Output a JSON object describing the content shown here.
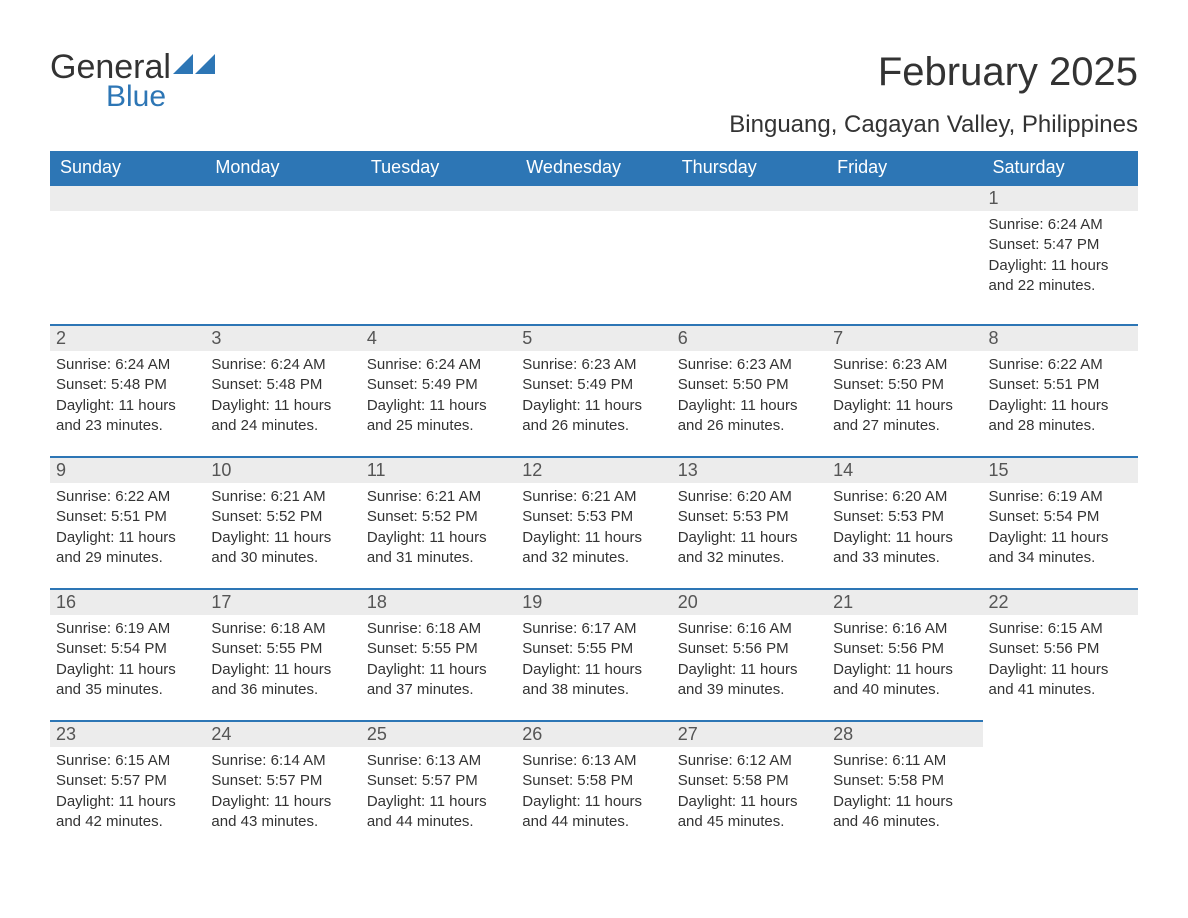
{
  "logo": {
    "word1": "General",
    "word2": "Blue",
    "color_text": "#333333",
    "color_blue": "#2d76b5"
  },
  "title": "February 2025",
  "location": "Binguang, Cagayan Valley, Philippines",
  "colors": {
    "header_bg": "#2d76b5",
    "header_text": "#ffffff",
    "daybar_bg": "#ececec",
    "daybar_border": "#2d76b5",
    "body_text": "#333333",
    "background": "#ffffff"
  },
  "font": {
    "family": "Arial",
    "title_size": 40,
    "location_size": 24,
    "dayhead_size": 18,
    "daynum_size": 18,
    "body_size": 15
  },
  "weekday_headers": [
    "Sunday",
    "Monday",
    "Tuesday",
    "Wednesday",
    "Thursday",
    "Friday",
    "Saturday"
  ],
  "weeks": [
    [
      null,
      null,
      null,
      null,
      null,
      null,
      {
        "n": "1",
        "sunrise": "Sunrise: 6:24 AM",
        "sunset": "Sunset: 5:47 PM",
        "daylight": "Daylight: 11 hours and 22 minutes."
      }
    ],
    [
      {
        "n": "2",
        "sunrise": "Sunrise: 6:24 AM",
        "sunset": "Sunset: 5:48 PM",
        "daylight": "Daylight: 11 hours and 23 minutes."
      },
      {
        "n": "3",
        "sunrise": "Sunrise: 6:24 AM",
        "sunset": "Sunset: 5:48 PM",
        "daylight": "Daylight: 11 hours and 24 minutes."
      },
      {
        "n": "4",
        "sunrise": "Sunrise: 6:24 AM",
        "sunset": "Sunset: 5:49 PM",
        "daylight": "Daylight: 11 hours and 25 minutes."
      },
      {
        "n": "5",
        "sunrise": "Sunrise: 6:23 AM",
        "sunset": "Sunset: 5:49 PM",
        "daylight": "Daylight: 11 hours and 26 minutes."
      },
      {
        "n": "6",
        "sunrise": "Sunrise: 6:23 AM",
        "sunset": "Sunset: 5:50 PM",
        "daylight": "Daylight: 11 hours and 26 minutes."
      },
      {
        "n": "7",
        "sunrise": "Sunrise: 6:23 AM",
        "sunset": "Sunset: 5:50 PM",
        "daylight": "Daylight: 11 hours and 27 minutes."
      },
      {
        "n": "8",
        "sunrise": "Sunrise: 6:22 AM",
        "sunset": "Sunset: 5:51 PM",
        "daylight": "Daylight: 11 hours and 28 minutes."
      }
    ],
    [
      {
        "n": "9",
        "sunrise": "Sunrise: 6:22 AM",
        "sunset": "Sunset: 5:51 PM",
        "daylight": "Daylight: 11 hours and 29 minutes."
      },
      {
        "n": "10",
        "sunrise": "Sunrise: 6:21 AM",
        "sunset": "Sunset: 5:52 PM",
        "daylight": "Daylight: 11 hours and 30 minutes."
      },
      {
        "n": "11",
        "sunrise": "Sunrise: 6:21 AM",
        "sunset": "Sunset: 5:52 PM",
        "daylight": "Daylight: 11 hours and 31 minutes."
      },
      {
        "n": "12",
        "sunrise": "Sunrise: 6:21 AM",
        "sunset": "Sunset: 5:53 PM",
        "daylight": "Daylight: 11 hours and 32 minutes."
      },
      {
        "n": "13",
        "sunrise": "Sunrise: 6:20 AM",
        "sunset": "Sunset: 5:53 PM",
        "daylight": "Daylight: 11 hours and 32 minutes."
      },
      {
        "n": "14",
        "sunrise": "Sunrise: 6:20 AM",
        "sunset": "Sunset: 5:53 PM",
        "daylight": "Daylight: 11 hours and 33 minutes."
      },
      {
        "n": "15",
        "sunrise": "Sunrise: 6:19 AM",
        "sunset": "Sunset: 5:54 PM",
        "daylight": "Daylight: 11 hours and 34 minutes."
      }
    ],
    [
      {
        "n": "16",
        "sunrise": "Sunrise: 6:19 AM",
        "sunset": "Sunset: 5:54 PM",
        "daylight": "Daylight: 11 hours and 35 minutes."
      },
      {
        "n": "17",
        "sunrise": "Sunrise: 6:18 AM",
        "sunset": "Sunset: 5:55 PM",
        "daylight": "Daylight: 11 hours and 36 minutes."
      },
      {
        "n": "18",
        "sunrise": "Sunrise: 6:18 AM",
        "sunset": "Sunset: 5:55 PM",
        "daylight": "Daylight: 11 hours and 37 minutes."
      },
      {
        "n": "19",
        "sunrise": "Sunrise: 6:17 AM",
        "sunset": "Sunset: 5:55 PM",
        "daylight": "Daylight: 11 hours and 38 minutes."
      },
      {
        "n": "20",
        "sunrise": "Sunrise: 6:16 AM",
        "sunset": "Sunset: 5:56 PM",
        "daylight": "Daylight: 11 hours and 39 minutes."
      },
      {
        "n": "21",
        "sunrise": "Sunrise: 6:16 AM",
        "sunset": "Sunset: 5:56 PM",
        "daylight": "Daylight: 11 hours and 40 minutes."
      },
      {
        "n": "22",
        "sunrise": "Sunrise: 6:15 AM",
        "sunset": "Sunset: 5:56 PM",
        "daylight": "Daylight: 11 hours and 41 minutes."
      }
    ],
    [
      {
        "n": "23",
        "sunrise": "Sunrise: 6:15 AM",
        "sunset": "Sunset: 5:57 PM",
        "daylight": "Daylight: 11 hours and 42 minutes."
      },
      {
        "n": "24",
        "sunrise": "Sunrise: 6:14 AM",
        "sunset": "Sunset: 5:57 PM",
        "daylight": "Daylight: 11 hours and 43 minutes."
      },
      {
        "n": "25",
        "sunrise": "Sunrise: 6:13 AM",
        "sunset": "Sunset: 5:57 PM",
        "daylight": "Daylight: 11 hours and 44 minutes."
      },
      {
        "n": "26",
        "sunrise": "Sunrise: 6:13 AM",
        "sunset": "Sunset: 5:58 PM",
        "daylight": "Daylight: 11 hours and 44 minutes."
      },
      {
        "n": "27",
        "sunrise": "Sunrise: 6:12 AM",
        "sunset": "Sunset: 5:58 PM",
        "daylight": "Daylight: 11 hours and 45 minutes."
      },
      {
        "n": "28",
        "sunrise": "Sunrise: 6:11 AM",
        "sunset": "Sunset: 5:58 PM",
        "daylight": "Daylight: 11 hours and 46 minutes."
      },
      null
    ]
  ]
}
